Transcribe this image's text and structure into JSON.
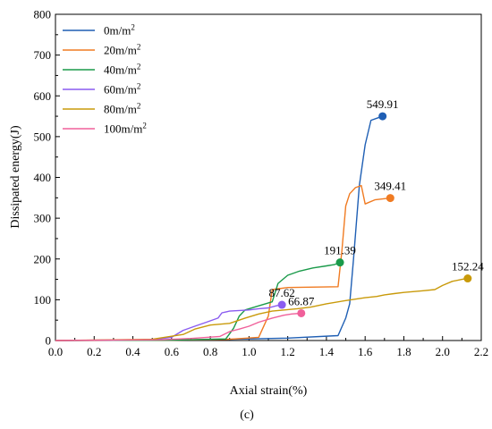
{
  "chart_data": {
    "type": "line",
    "xlabel": "Axial strain(%)",
    "ylabel": "Dissipated energy(J)",
    "panel_label": "(c)",
    "xlim": [
      0.0,
      2.2
    ],
    "ylim": [
      0,
      800
    ],
    "x_ticks": [
      "0.0",
      "0.2",
      "0.4",
      "0.6",
      "0.8",
      "1.0",
      "1.2",
      "1.4",
      "1.6",
      "1.8",
      "2.0",
      "2.2"
    ],
    "y_ticks": [
      "0",
      "100",
      "200",
      "300",
      "400",
      "500",
      "600",
      "700",
      "800"
    ],
    "legend_position": "top-left",
    "grid": false,
    "series": [
      {
        "name": "0m/m",
        "unit_sup": "2",
        "color": "#1f5fb4",
        "points": [
          [
            0.0,
            0
          ],
          [
            0.8,
            2
          ],
          [
            1.2,
            6
          ],
          [
            1.46,
            12
          ],
          [
            1.5,
            55
          ],
          [
            1.52,
            90
          ],
          [
            1.54,
            200
          ],
          [
            1.57,
            380
          ],
          [
            1.6,
            480
          ],
          [
            1.63,
            540
          ],
          [
            1.66,
            545
          ],
          [
            1.69,
            549.91
          ]
        ],
        "end_value": "549.91"
      },
      {
        "name": "20m/m",
        "unit_sup": "2",
        "color": "#f07b22",
        "points": [
          [
            0.0,
            0
          ],
          [
            0.6,
            1
          ],
          [
            0.9,
            3
          ],
          [
            1.05,
            8
          ],
          [
            1.1,
            60
          ],
          [
            1.12,
            125
          ],
          [
            1.2,
            130
          ],
          [
            1.46,
            132
          ],
          [
            1.48,
            220
          ],
          [
            1.5,
            330
          ],
          [
            1.52,
            360
          ],
          [
            1.55,
            375
          ],
          [
            1.58,
            380
          ],
          [
            1.6,
            335
          ],
          [
            1.65,
            345
          ],
          [
            1.73,
            349.41
          ]
        ],
        "end_value": "349.41"
      },
      {
        "name": "40m/m",
        "unit_sup": "2",
        "color": "#1a9a4a",
        "points": [
          [
            0.0,
            0
          ],
          [
            0.6,
            1
          ],
          [
            0.88,
            4
          ],
          [
            0.92,
            30
          ],
          [
            0.95,
            60
          ],
          [
            0.98,
            75
          ],
          [
            1.05,
            85
          ],
          [
            1.12,
            95
          ],
          [
            1.15,
            140
          ],
          [
            1.2,
            160
          ],
          [
            1.26,
            170
          ],
          [
            1.33,
            178
          ],
          [
            1.4,
            183
          ],
          [
            1.44,
            186
          ],
          [
            1.47,
            191.39
          ]
        ],
        "end_value": "191.39"
      },
      {
        "name": "60m/m",
        "unit_sup": "2",
        "color": "#8a5cf0",
        "points": [
          [
            0.0,
            0
          ],
          [
            0.5,
            2
          ],
          [
            0.6,
            8
          ],
          [
            0.66,
            25
          ],
          [
            0.72,
            35
          ],
          [
            0.78,
            45
          ],
          [
            0.84,
            55
          ],
          [
            0.86,
            68
          ],
          [
            0.9,
            72
          ],
          [
            1.0,
            75
          ],
          [
            1.05,
            78
          ],
          [
            1.1,
            80
          ],
          [
            1.14,
            85
          ],
          [
            1.17,
            87.62
          ]
        ],
        "end_value": "87.62"
      },
      {
        "name": "80m/m",
        "unit_sup": "2",
        "color": "#c99a0a",
        "points": [
          [
            0.0,
            0
          ],
          [
            0.5,
            3
          ],
          [
            0.66,
            15
          ],
          [
            0.72,
            28
          ],
          [
            0.8,
            38
          ],
          [
            0.9,
            42
          ],
          [
            0.98,
            55
          ],
          [
            1.05,
            65
          ],
          [
            1.12,
            72
          ],
          [
            1.25,
            78
          ],
          [
            1.32,
            82
          ],
          [
            1.4,
            90
          ],
          [
            1.5,
            98
          ],
          [
            1.6,
            105
          ],
          [
            1.66,
            108
          ],
          [
            1.7,
            112
          ],
          [
            1.75,
            115
          ],
          [
            1.8,
            118
          ],
          [
            1.9,
            122
          ],
          [
            1.96,
            125
          ],
          [
            2.0,
            135
          ],
          [
            2.05,
            145
          ],
          [
            2.1,
            150
          ],
          [
            2.13,
            152.24
          ]
        ],
        "end_value": "152.24"
      },
      {
        "name": "100m/m",
        "unit_sup": "2",
        "color": "#f0609a",
        "points": [
          [
            0.0,
            0
          ],
          [
            0.55,
            2
          ],
          [
            0.7,
            5
          ],
          [
            0.85,
            10
          ],
          [
            0.9,
            22
          ],
          [
            0.95,
            28
          ],
          [
            1.0,
            35
          ],
          [
            1.05,
            45
          ],
          [
            1.12,
            55
          ],
          [
            1.18,
            62
          ],
          [
            1.22,
            65
          ],
          [
            1.27,
            66.87
          ]
        ],
        "end_value": "66.87"
      }
    ]
  }
}
